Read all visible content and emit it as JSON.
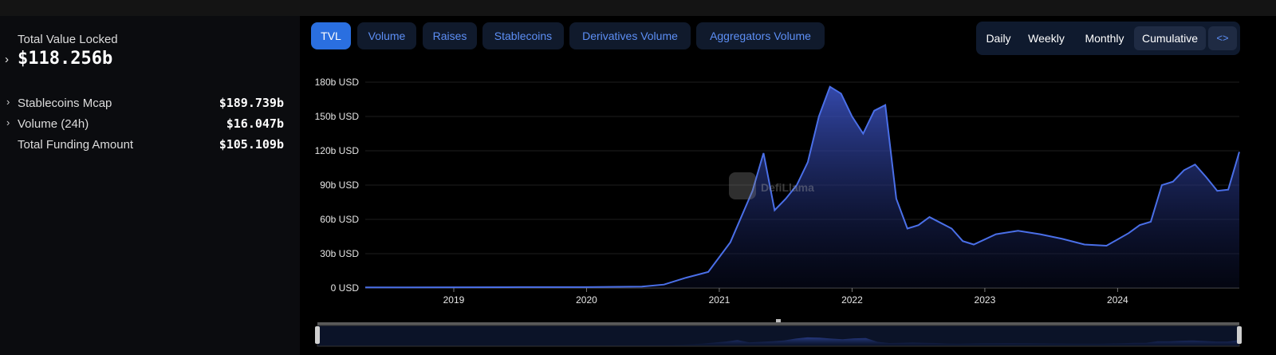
{
  "sidebar": {
    "tvl_label": "Total Value Locked",
    "tvl_value": "$118.256b",
    "metrics": [
      {
        "label": "Stablecoins Mcap",
        "value": "$189.739b",
        "expandable": true
      },
      {
        "label": "Volume (24h)",
        "value": "$16.047b",
        "expandable": true
      },
      {
        "label": "Total Funding Amount",
        "value": "$105.109b",
        "expandable": false
      }
    ]
  },
  "tabs": [
    {
      "label": "TVL",
      "active": true
    },
    {
      "label": "Volume",
      "active": false
    },
    {
      "label": "Raises",
      "active": false
    },
    {
      "label": "Stablecoins",
      "active": false
    },
    {
      "label": "Derivatives Volume",
      "active": false
    },
    {
      "label": "Aggregators Volume",
      "active": false
    }
  ],
  "periods": [
    {
      "label": "Daily",
      "active": false
    },
    {
      "label": "Weekly",
      "active": false
    },
    {
      "label": "Monthly",
      "active": false
    },
    {
      "label": "Cumulative",
      "active": true
    }
  ],
  "embed_icon": "code-embed-icon",
  "watermark": "DefiLlama",
  "colors": {
    "accent": "#2a6fe0",
    "line": "#4a6fe8",
    "tab_text": "#5d8ff5",
    "tab_bg": "#101a2c"
  },
  "chart_data": {
    "type": "area",
    "y_tick_labels": [
      "0 USD",
      "30b USD",
      "60b USD",
      "90b USD",
      "120b USD",
      "150b USD",
      "180b USD"
    ],
    "x_tick_labels": [
      "2019",
      "2020",
      "2021",
      "2022",
      "2023",
      "2024"
    ],
    "ylim": [
      0,
      180
    ],
    "y_unit": "b USD",
    "grid": true,
    "series": [
      {
        "x": [
          "2018-05",
          "2019-01",
          "2019-07",
          "2020-01",
          "2020-06",
          "2020-08",
          "2020-10",
          "2020-12",
          "2021-02",
          "2021-04",
          "2021-05",
          "2021-06",
          "2021-07",
          "2021-08",
          "2021-09",
          "2021-10",
          "2021-11",
          "2021-12",
          "2022-01",
          "2022-02",
          "2022-03",
          "2022-04",
          "2022-05",
          "2022-06",
          "2022-07",
          "2022-08",
          "2022-09",
          "2022-10",
          "2022-11",
          "2022-12",
          "2023-02",
          "2023-04",
          "2023-06",
          "2023-08",
          "2023-10",
          "2023-12",
          "2024-02",
          "2024-03",
          "2024-04",
          "2024-05",
          "2024-06",
          "2024-07",
          "2024-08",
          "2024-09",
          "2024-10",
          "2024-11",
          "2024-12"
        ],
        "values": [
          0.5,
          0.6,
          0.8,
          0.8,
          1.2,
          3,
          9,
          14,
          40,
          85,
          118,
          68,
          78,
          90,
          110,
          150,
          176,
          170,
          150,
          135,
          155,
          160,
          78,
          52,
          55,
          62,
          57,
          52,
          41,
          38,
          47,
          50,
          47,
          43,
          38,
          37,
          48,
          55,
          58,
          90,
          93,
          103,
          108,
          97,
          85,
          86,
          119
        ]
      }
    ]
  }
}
